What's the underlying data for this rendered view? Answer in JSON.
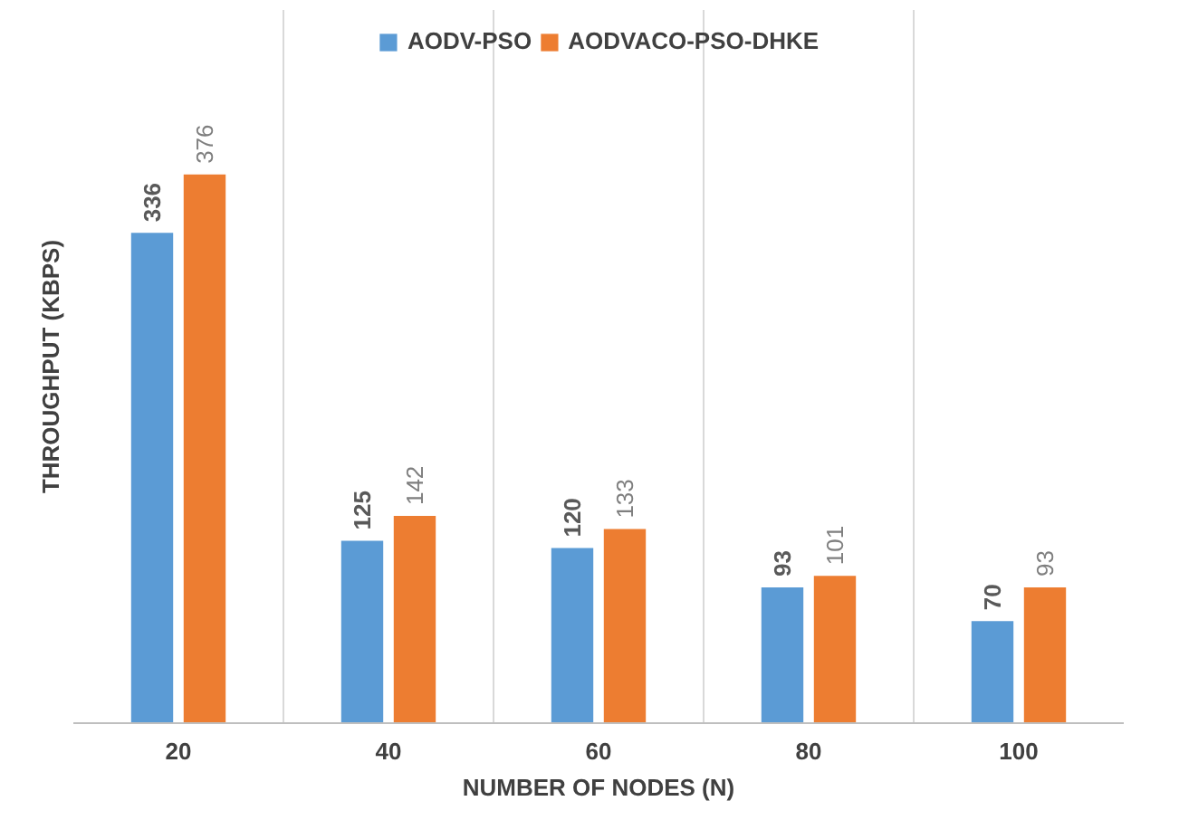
{
  "chart_data": {
    "type": "bar",
    "xlabel": "NUMBER OF NODES (N)",
    "ylabel": "THROUGHPUT (KBPS)",
    "categories": [
      "20",
      "40",
      "60",
      "80",
      "100"
    ],
    "series": [
      {
        "name": "AODV-PSO",
        "color": "#5b9bd5",
        "values": [
          336,
          125,
          120,
          93,
          70
        ]
      },
      {
        "name": "AODVACO-PSO-DHKE",
        "color": "#ed7d31",
        "values": [
          376,
          142,
          133,
          101,
          93
        ]
      }
    ],
    "data_labels": true,
    "legend": "top",
    "grid": "x"
  }
}
